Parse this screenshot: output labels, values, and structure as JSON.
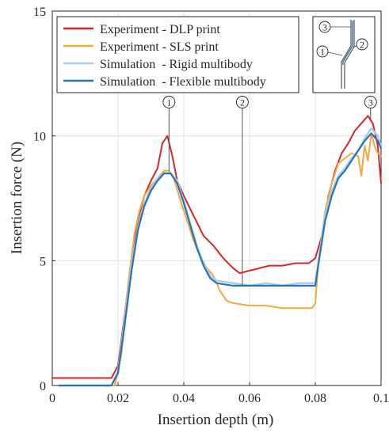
{
  "chart_data": {
    "type": "line",
    "xlabel": "Insertion depth (m)",
    "ylabel": "Insertion force (N)",
    "xlim": [
      0,
      0.1
    ],
    "ylim": [
      0,
      15
    ],
    "x_ticks": [
      0,
      0.02,
      0.04,
      0.06,
      0.08,
      0.1
    ],
    "x_tick_labels": [
      "0",
      "0.02",
      "0.04",
      "0.06",
      "0.08",
      "0.1"
    ],
    "y_ticks": [
      0,
      5,
      10,
      15
    ],
    "y_tick_labels": [
      "0",
      "5",
      "10",
      "15"
    ],
    "grid": true,
    "legend_position": "top-left",
    "series": [
      {
        "name": "Experiment - DLP print",
        "color": "#d7262b",
        "x": [
          0,
          0.005,
          0.01,
          0.015,
          0.018,
          0.02,
          0.022,
          0.024,
          0.026,
          0.028,
          0.03,
          0.032,
          0.0335,
          0.035,
          0.0365,
          0.038,
          0.04,
          0.043,
          0.046,
          0.049,
          0.052,
          0.055,
          0.057,
          0.06,
          0.063,
          0.066,
          0.07,
          0.074,
          0.078,
          0.08,
          0.082,
          0.084,
          0.086,
          0.088,
          0.09,
          0.092,
          0.094,
          0.096,
          0.0975,
          0.099,
          0.1
        ],
        "y": [
          0.3,
          0.3,
          0.3,
          0.3,
          0.3,
          0.8,
          2.8,
          5.0,
          6.6,
          7.6,
          8.2,
          8.7,
          9.7,
          10.0,
          9.2,
          8.2,
          7.6,
          6.8,
          6.0,
          5.6,
          5.1,
          4.7,
          4.5,
          4.6,
          4.7,
          4.8,
          4.8,
          4.9,
          4.9,
          5.1,
          6.0,
          7.6,
          8.6,
          9.3,
          9.7,
          10.2,
          10.5,
          10.8,
          10.5,
          9.6,
          8.1
        ]
      },
      {
        "name": "Experiment - SLS print",
        "color": "#f4a842",
        "x": [
          0.002,
          0.01,
          0.017,
          0.019,
          0.021,
          0.023,
          0.025,
          0.0265,
          0.028,
          0.03,
          0.032,
          0.034,
          0.0355,
          0.037,
          0.039,
          0.041,
          0.043,
          0.045,
          0.047,
          0.049,
          0.051,
          0.053,
          0.055,
          0.06,
          0.065,
          0.07,
          0.075,
          0.079,
          0.08,
          0.081,
          0.083,
          0.085,
          0.087,
          0.089,
          0.091,
          0.093,
          0.094,
          0.095,
          0.096,
          0.097,
          0.098,
          0.099,
          0.1
        ],
        "y": [
          0.0,
          0.0,
          0.0,
          0.0,
          1.2,
          4.0,
          6.1,
          7.0,
          7.6,
          8.0,
          8.3,
          8.6,
          8.6,
          8.3,
          7.4,
          6.6,
          5.8,
          5.2,
          4.7,
          4.4,
          3.8,
          3.4,
          3.3,
          3.2,
          3.2,
          3.1,
          3.1,
          3.1,
          3.3,
          5.0,
          7.0,
          8.1,
          8.9,
          9.1,
          9.3,
          9.2,
          8.4,
          9.6,
          9.0,
          10.1,
          9.6,
          9.3,
          9.2
        ]
      },
      {
        "name": "Simulation  - Rigid multibody",
        "color": "#a6d0ea",
        "x": [
          0.002,
          0.01,
          0.018,
          0.02,
          0.022,
          0.024,
          0.026,
          0.028,
          0.03,
          0.032,
          0.034,
          0.036,
          0.038,
          0.04,
          0.042,
          0.044,
          0.046,
          0.048,
          0.05,
          0.055,
          0.06,
          0.065,
          0.07,
          0.075,
          0.08,
          0.081,
          0.083,
          0.085,
          0.087,
          0.089,
          0.091,
          0.093,
          0.095,
          0.097,
          0.099,
          0.1
        ],
        "y": [
          0.0,
          0.0,
          0.0,
          0.6,
          2.6,
          4.7,
          6.3,
          7.3,
          7.9,
          8.3,
          8.5,
          8.5,
          8.2,
          7.4,
          6.5,
          5.6,
          4.9,
          4.4,
          4.2,
          4.1,
          4.0,
          4.1,
          4.0,
          4.1,
          4.1,
          5.0,
          6.8,
          7.8,
          8.4,
          8.7,
          9.1,
          9.4,
          9.9,
          10.3,
          10.0,
          9.6
        ]
      },
      {
        "name": "Simulation  - Flexible multibody",
        "color": "#2a74b5",
        "x": [
          0.002,
          0.01,
          0.018,
          0.02,
          0.022,
          0.024,
          0.026,
          0.028,
          0.03,
          0.032,
          0.034,
          0.036,
          0.038,
          0.04,
          0.042,
          0.044,
          0.046,
          0.048,
          0.05,
          0.055,
          0.06,
          0.065,
          0.07,
          0.075,
          0.08,
          0.081,
          0.083,
          0.085,
          0.087,
          0.089,
          0.091,
          0.093,
          0.095,
          0.097,
          0.099,
          0.1
        ],
        "y": [
          0.0,
          0.0,
          0.0,
          0.5,
          2.4,
          4.5,
          6.2,
          7.2,
          7.8,
          8.2,
          8.5,
          8.5,
          8.1,
          7.3,
          6.4,
          5.5,
          4.8,
          4.3,
          4.1,
          4.0,
          4.0,
          4.0,
          4.0,
          4.0,
          4.0,
          4.9,
          6.6,
          7.6,
          8.3,
          8.6,
          9.0,
          9.4,
          9.8,
          10.1,
          9.8,
          9.5
        ]
      }
    ],
    "markers": [
      {
        "label": "1",
        "x": 0.0355
      },
      {
        "label": "2",
        "x": 0.0578
      },
      {
        "label": "3",
        "x": 0.0968
      }
    ],
    "inset": {
      "labels": [
        "3",
        "2",
        "1"
      ]
    }
  }
}
